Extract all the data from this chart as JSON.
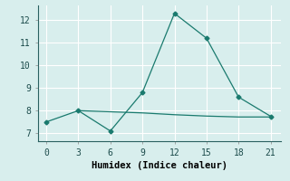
{
  "line1_x": [
    0,
    3,
    6,
    9,
    12,
    15,
    18,
    21
  ],
  "line1_y": [
    7.5,
    8.0,
    7.1,
    8.8,
    12.3,
    11.2,
    8.6,
    7.75
  ],
  "line2_x": [
    3,
    6,
    9,
    12,
    15,
    18,
    21
  ],
  "line2_y": [
    8.0,
    7.95,
    7.9,
    7.82,
    7.76,
    7.72,
    7.72
  ],
  "line_color": "#1a7a6e",
  "bg_color": "#d8eeed",
  "grid_color": "#ffffff",
  "xlabel": "Humidex (Indice chaleur)",
  "xticks": [
    0,
    3,
    6,
    9,
    12,
    15,
    18,
    21
  ],
  "yticks": [
    7,
    8,
    9,
    10,
    11,
    12
  ],
  "xlim": [
    -0.8,
    22.0
  ],
  "ylim": [
    6.65,
    12.65
  ],
  "label_fontsize": 7.5,
  "tick_fontsize": 7.0
}
